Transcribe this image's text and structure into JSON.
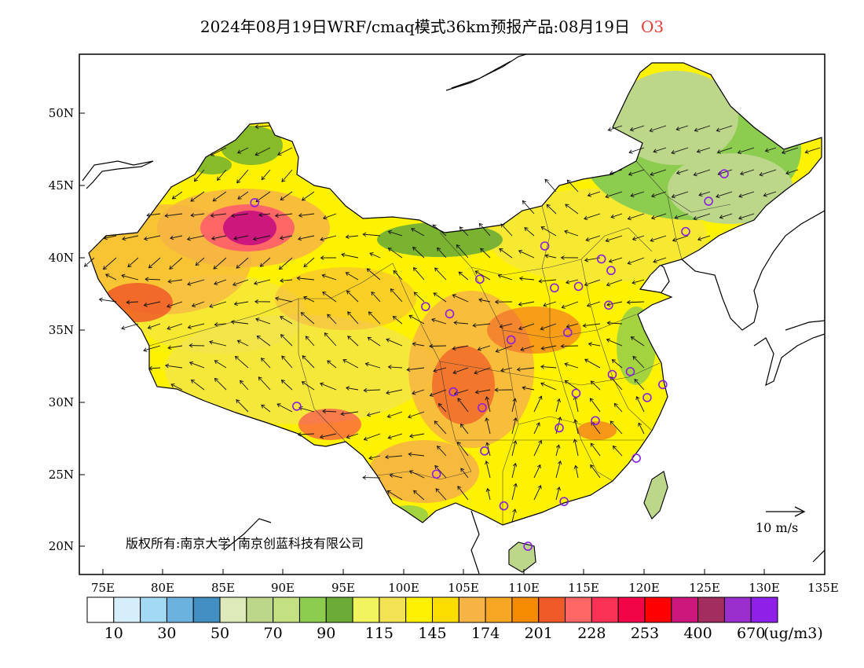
{
  "title": {
    "main": "2024年08月19日WRF/cmaq模式36km预报产品:08月19日",
    "species": "O3"
  },
  "axes": {
    "lat_labels": [
      "50N",
      "45N",
      "40N",
      "35N",
      "30N",
      "25N",
      "20N"
    ],
    "lon_labels": [
      "75E",
      "80E",
      "85E",
      "90E",
      "95E",
      "100E",
      "105E",
      "110E",
      "115E",
      "120E",
      "125E",
      "130E",
      "135E"
    ]
  },
  "copyright": "版权所有:南京大学│南京创蓝科技有限公司",
  "wind_scale": {
    "label": "10 m/s"
  },
  "legend": {
    "colors": [
      "#ffffff",
      "#d6eef9",
      "#a3d9f2",
      "#6cb2de",
      "#438fc4",
      "#dfeabb",
      "#bcd68a",
      "#c3e082",
      "#8ccc4f",
      "#6aac35",
      "#f1f35f",
      "#f2e254",
      "#fef200",
      "#fbdd00",
      "#f7b444",
      "#f6a623",
      "#f68b00",
      "#f05a28",
      "#fe6766",
      "#fa3356",
      "#f20547",
      "#fe0000",
      "#cc177d",
      "#a42d5f",
      "#9a2fcd",
      "#8e20e8"
    ],
    "labels": [
      "10",
      "30",
      "50",
      "70",
      "90",
      "115",
      "145",
      "174",
      "201",
      "228",
      "253",
      "400",
      "670"
    ],
    "unit": "(ug/m3)"
  },
  "chart_data": {
    "type": "map",
    "variable": "O3",
    "unit": "ug/m3",
    "lon_range": [
      73,
      135
    ],
    "lat_range": [
      18,
      54
    ],
    "stations": [
      [
        87.6,
        43.8
      ],
      [
        101.8,
        36.6
      ],
      [
        103.8,
        36.1
      ],
      [
        106.3,
        38.5
      ],
      [
        111.7,
        40.8
      ],
      [
        112.5,
        37.9
      ],
      [
        114.5,
        38.0
      ],
      [
        116.4,
        39.9
      ],
      [
        117.2,
        39.1
      ],
      [
        117.0,
        36.7
      ],
      [
        113.6,
        34.8
      ],
      [
        108.9,
        34.3
      ],
      [
        123.4,
        41.8
      ],
      [
        125.3,
        43.9
      ],
      [
        126.6,
        45.8
      ],
      [
        117.3,
        31.9
      ],
      [
        118.8,
        32.1
      ],
      [
        120.2,
        30.3
      ],
      [
        121.5,
        31.2
      ],
      [
        114.3,
        30.6
      ],
      [
        112.9,
        28.2
      ],
      [
        115.9,
        28.7
      ],
      [
        119.3,
        26.1
      ],
      [
        113.3,
        23.1
      ],
      [
        108.3,
        22.8
      ],
      [
        110.3,
        20.0
      ],
      [
        106.7,
        26.6
      ],
      [
        102.7,
        25.0
      ],
      [
        104.1,
        30.7
      ],
      [
        106.5,
        29.6
      ],
      [
        91.1,
        29.7
      ]
    ]
  }
}
